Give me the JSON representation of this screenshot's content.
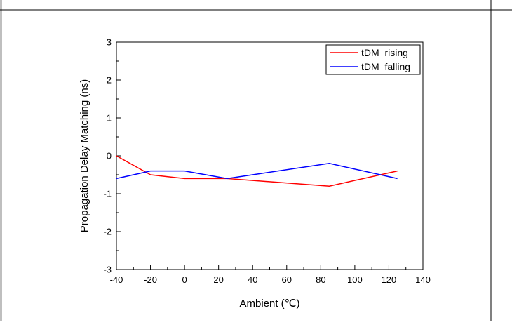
{
  "chart_data": {
    "type": "line",
    "title": "",
    "xlabel": "Ambient (℃)",
    "ylabel": "Propagation Delay Matching (ns)",
    "xlim": [
      -40,
      140
    ],
    "ylim": [
      -3,
      3
    ],
    "xticks": [
      -40,
      -20,
      0,
      20,
      40,
      60,
      80,
      100,
      120,
      140
    ],
    "yticks": [
      -3,
      -2,
      -1,
      0,
      1,
      2,
      3
    ],
    "grid": false,
    "legend_position": "top-right",
    "series": [
      {
        "name": "tDM_rising",
        "color": "#ff0000",
        "x": [
          -40,
          -20,
          0,
          25,
          85,
          125
        ],
        "y": [
          0.0,
          -0.5,
          -0.6,
          -0.6,
          -0.8,
          -0.4
        ]
      },
      {
        "name": "tDM_falling",
        "color": "#0000ff",
        "x": [
          -40,
          -20,
          0,
          25,
          85,
          125
        ],
        "y": [
          -0.6,
          -0.4,
          -0.4,
          -0.6,
          -0.2,
          -0.6
        ]
      }
    ]
  }
}
